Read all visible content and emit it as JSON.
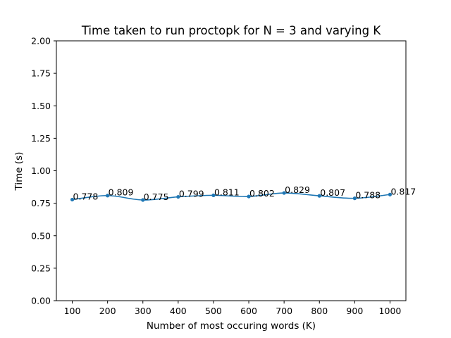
{
  "chart_data": {
    "type": "line",
    "title": "Time taken to run proctopk for N = 3 and varying K",
    "xlabel": "Number of most occuring words (K)",
    "ylabel": "Time (s)",
    "x": [
      100,
      200,
      300,
      400,
      500,
      600,
      700,
      800,
      900,
      1000
    ],
    "series": [
      {
        "values": [
          0.778,
          0.809,
          0.775,
          0.799,
          0.811,
          0.802,
          0.829,
          0.807,
          0.788,
          0.817
        ],
        "data_labels": [
          "0.778",
          "0.809",
          "0.775",
          "0.799",
          "0.811",
          "0.802",
          "0.829",
          "0.807",
          "0.788",
          "0.817"
        ]
      }
    ],
    "xlim": [
      55,
      1045
    ],
    "ylim": [
      0,
      2
    ],
    "xticks": [
      100,
      200,
      300,
      400,
      500,
      600,
      700,
      800,
      900,
      1000
    ],
    "xtick_labels": [
      "100",
      "200",
      "300",
      "400",
      "500",
      "600",
      "700",
      "800",
      "900",
      "1000"
    ],
    "yticks": [
      0,
      0.25,
      0.5,
      0.75,
      1.0,
      1.25,
      1.5,
      1.75,
      2.0
    ],
    "ytick_labels": [
      "0.00",
      "0.25",
      "0.50",
      "0.75",
      "1.00",
      "1.25",
      "1.50",
      "1.75",
      "2.00"
    ],
    "grid": false,
    "line_color": "#1f77b4",
    "smoothed": true,
    "markers": "dot"
  }
}
